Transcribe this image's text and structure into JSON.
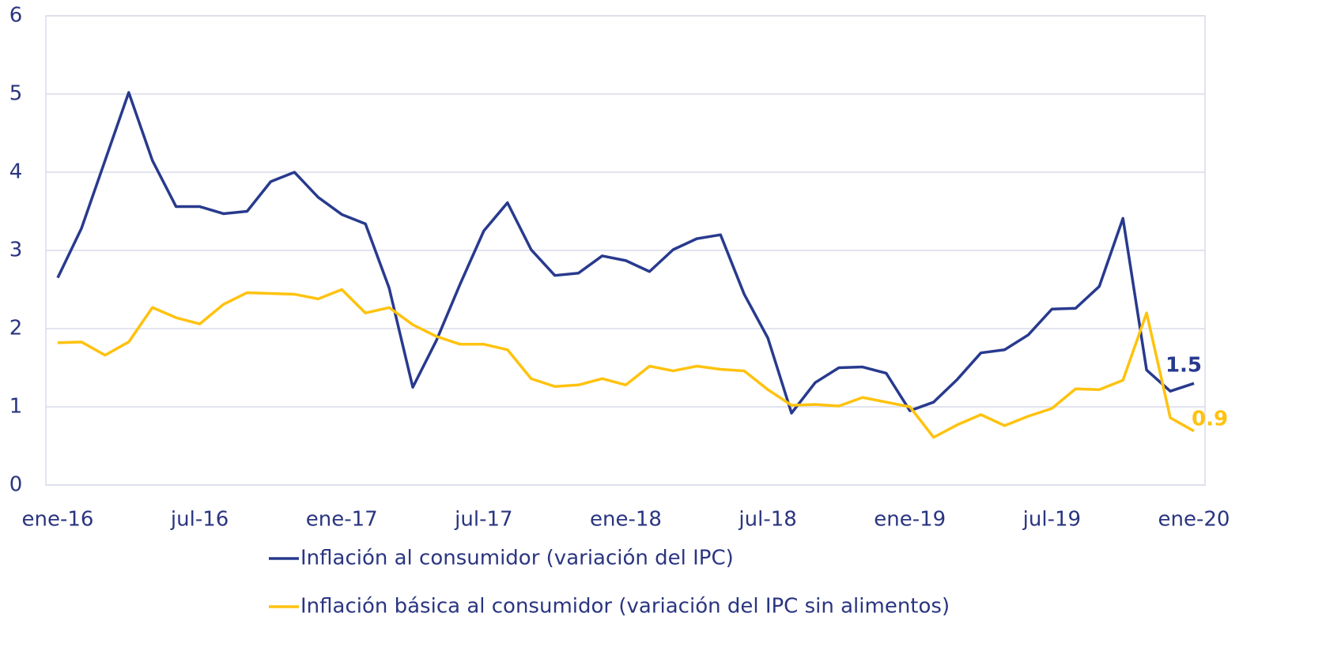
{
  "chart_data": {
    "type": "line",
    "categories": [
      "ene-16",
      null,
      null,
      null,
      null,
      null,
      "jul-16",
      null,
      null,
      null,
      null,
      null,
      "ene-17",
      null,
      null,
      null,
      null,
      null,
      "jul-17",
      null,
      null,
      null,
      null,
      null,
      "ene-18",
      null,
      null,
      null,
      null,
      null,
      "jul-18",
      null,
      null,
      null,
      null,
      null,
      "ene-19",
      null,
      null,
      null,
      null,
      null,
      "jul-19",
      null,
      null,
      null,
      null,
      null,
      "ene-20"
    ],
    "series": [
      {
        "name": "Inflación al consumidor (variación del IPC)",
        "color": "#283a8e",
        "values": [
          2.65,
          3.28,
          4.15,
          5.02,
          4.15,
          3.56,
          3.56,
          3.47,
          3.5,
          3.88,
          4.0,
          3.68,
          3.46,
          3.34,
          2.52,
          1.25,
          1.85,
          2.57,
          3.25,
          3.61,
          3.01,
          2.68,
          2.71,
          2.93,
          2.87,
          2.73,
          3.01,
          3.15,
          3.2,
          2.44,
          1.88,
          0.92,
          1.31,
          1.5,
          1.51,
          1.43,
          0.95,
          1.06,
          1.35,
          1.69,
          1.73,
          1.92,
          2.25,
          2.26,
          2.54,
          3.41,
          1.47,
          1.2,
          1.3
        ]
      },
      {
        "name": "Inflación básica al consumidor (variación del IPC sin alimentos)",
        "color": "#ffc20e",
        "values": [
          1.82,
          1.83,
          1.66,
          1.83,
          2.27,
          2.14,
          2.06,
          2.31,
          2.46,
          2.45,
          2.44,
          2.38,
          2.5,
          2.2,
          2.27,
          2.05,
          1.9,
          1.8,
          1.8,
          1.73,
          1.36,
          1.26,
          1.28,
          1.36,
          1.28,
          1.52,
          1.46,
          1.52,
          1.48,
          1.46,
          1.22,
          1.02,
          1.03,
          1.01,
          1.12,
          1.06,
          1.0,
          0.61,
          0.77,
          0.9,
          0.76,
          0.88,
          0.98,
          1.23,
          1.22,
          1.34,
          2.2,
          0.86,
          0.69
        ]
      }
    ],
    "annotations": [
      {
        "text": "1.5",
        "color": "#283a8e"
      },
      {
        "text": "0.9",
        "color": "#ffc20e"
      }
    ],
    "ylim": [
      0,
      6
    ],
    "yticks": [
      0,
      1,
      2,
      3,
      4,
      5,
      6
    ],
    "grid": true
  }
}
